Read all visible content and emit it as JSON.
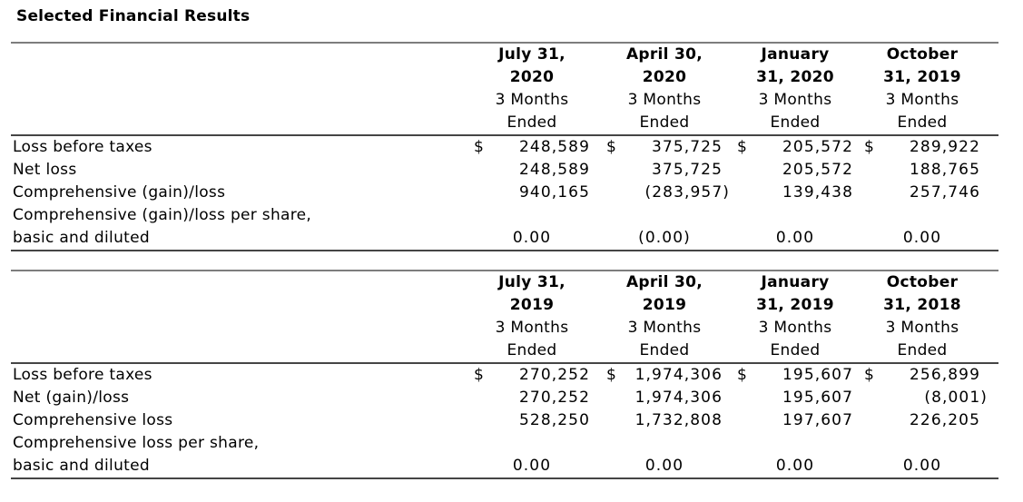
{
  "page": {
    "title": "Selected Financial Results"
  },
  "tables": [
    {
      "name": "quarters-fy2020",
      "columns": [
        {
          "period1": "July 31,",
          "period2": "2020",
          "sub1": "3 Months",
          "sub2": "Ended"
        },
        {
          "period1": "April 30,",
          "period2": "2020",
          "sub1": "3 Months",
          "sub2": "Ended"
        },
        {
          "period1": "January",
          "period2": "31, 2020",
          "sub1": "3 Months",
          "sub2": "Ended"
        },
        {
          "period1": "October",
          "period2": "31, 2019",
          "sub1": "3 Months",
          "sub2": "Ended"
        }
      ],
      "rows": [
        {
          "label": "Loss before taxes",
          "currency": "$",
          "values": [
            "248,589",
            "375,725",
            "205,572",
            "289,922"
          ]
        },
        {
          "label": "Net loss",
          "values": [
            "248,589",
            "375,725",
            "205,572",
            "188,765"
          ]
        },
        {
          "label": "Comprehensive (gain)/loss",
          "values": [
            "940,165",
            "(283,957)",
            "139,438",
            "257,746"
          ]
        },
        {
          "label": "Comprehensive (gain)/loss per share,",
          "values": [
            "",
            "",
            "",
            ""
          ]
        },
        {
          "label": "basic and diluted",
          "values": [
            "0.00",
            "(0.00)",
            "0.00",
            "0.00"
          ]
        }
      ]
    },
    {
      "name": "quarters-fy2019",
      "columns": [
        {
          "period1": "July 31,",
          "period2": "2019",
          "sub1": "3 Months",
          "sub2": "Ended"
        },
        {
          "period1": "April 30,",
          "period2": "2019",
          "sub1": "3 Months",
          "sub2": "Ended"
        },
        {
          "period1": "January",
          "period2": "31, 2019",
          "sub1": "3 Months",
          "sub2": "Ended"
        },
        {
          "period1": "October",
          "period2": "31, 2018",
          "sub1": "3 Months",
          "sub2": "Ended"
        }
      ],
      "rows": [
        {
          "label": "Loss before taxes",
          "currency": "$",
          "values": [
            "270,252",
            "1,974,306",
            "195,607",
            "256,899"
          ]
        },
        {
          "label": "Net (gain)/loss",
          "values": [
            "270,252",
            "1,974,306",
            "195,607",
            "(8,001)"
          ]
        },
        {
          "label": "Comprehensive loss",
          "values": [
            "528,250",
            "1,732,808",
            "197,607",
            "226,205"
          ]
        },
        {
          "label": "Comprehensive loss per share,",
          "values": [
            "",
            "",
            "",
            ""
          ]
        },
        {
          "label": "basic and diluted",
          "values": [
            "0.00",
            "0.00",
            "0.00",
            "0.00"
          ]
        }
      ]
    }
  ]
}
